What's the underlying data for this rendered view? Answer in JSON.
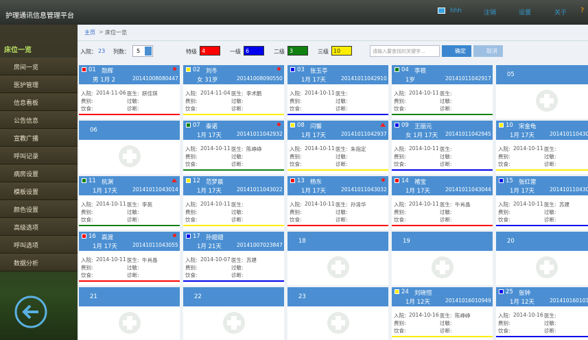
{
  "header": {
    "title": "护理通讯信息管理平台",
    "user": "hhh",
    "links": [
      "注销",
      "设置",
      "关于",
      "?"
    ]
  },
  "sidebar": {
    "heading": "床位一览",
    "items": [
      "房间一览",
      "医护管理",
      "信息看板",
      "公告信息",
      "宣教广播",
      "呼叫记录",
      "病房设置",
      "模板设置",
      "颜色设置",
      "高级选项",
      "呼叫选项",
      "数据分析"
    ]
  },
  "breadcrumb": {
    "items": [
      "主页",
      "床位一览"
    ],
    "separator": ">"
  },
  "toolbar": {
    "admitted_label": "入院：",
    "admitted": 23,
    "columns_label": "列数：",
    "columns": 5,
    "levels": [
      {
        "name": "特级",
        "count": 4,
        "color": "#ff0000"
      },
      {
        "name": "一级",
        "count": 6,
        "color": "#0000ee"
      },
      {
        "name": "二级",
        "count": 3,
        "color": "#108010"
      },
      {
        "name": "三级",
        "count": 10,
        "color": "#ffee00"
      }
    ],
    "search_placeholder": "请输入要查找的关键字...",
    "confirm": "确定",
    "cancel": "取消"
  },
  "field_labels": {
    "admit": "入院:",
    "doctor": "医生:",
    "fee": "费别:",
    "allergy": "过敏:",
    "diet": "饮食:",
    "diagnosis": "诊断:"
  },
  "beds": [
    {
      "number": "01",
      "name": "勋辉",
      "age": "男 1月 2",
      "id": "20141008080447",
      "admit_date": "2014-11-06",
      "doctor": "趼佳琪",
      "color": "#ff0000",
      "flag": "dot"
    },
    {
      "number": "02",
      "name": "刘冬",
      "age": "女 31岁",
      "id": "20141008090550",
      "admit_date": "2014-11-04",
      "doctor": "李术鹏",
      "color": "#ffee00",
      "flag": "dot"
    },
    {
      "number": "03",
      "name": "张玉亭",
      "age": "1月 17天",
      "id": "20141011042910",
      "admit_date": "2014-10-11",
      "color": "#0000ee"
    },
    {
      "number": "04",
      "name": "李根",
      "age": "1岁",
      "id": "20141011042917",
      "admit_date": "2014-10-11",
      "color": "#108010"
    },
    {
      "number": "05"
    },
    {
      "number": "06"
    },
    {
      "number": "07",
      "name": "秦诺",
      "age": "1月 17天",
      "id": "20141011042932",
      "admit_date": "2014-10-11",
      "doctor": "陈峥峥",
      "color": "#108010",
      "flag": "dot"
    },
    {
      "number": "08",
      "name": "闫馨",
      "age": "1月 17天",
      "id": "20141011042937",
      "admit_date": "2014-10-11",
      "doctor": "朱指定",
      "color": "#ffee00",
      "flag": "triangle"
    },
    {
      "number": "09",
      "name": "王丽元",
      "age": "女 1月 17天",
      "id": "20141011042945",
      "admit_date": "2014-10-11",
      "color": "#0000ee"
    },
    {
      "number": "10",
      "name": "宋金龟",
      "age": "1月 17天",
      "id": "2014101104303",
      "admit_date": "2014-10-11",
      "color": "#ffee00"
    },
    {
      "number": "11",
      "name": "杭渊",
      "age": "1月 17天",
      "id": "20141011043014",
      "admit_date": "2014-10-11",
      "doctor": "李苑",
      "color": "#108010",
      "flag": "triangle"
    },
    {
      "number": "12",
      "name": "范梦晨",
      "age": "1月 17天",
      "id": "20141011043022",
      "admit_date": "2014-10-11",
      "color": "#ffee00"
    },
    {
      "number": "13",
      "name": "杨东",
      "age": "1月 17天",
      "id": "20141011043032",
      "admit_date": "2014-10-11",
      "doctor": "孙清华",
      "color": "#ff0000",
      "flag": "dot"
    },
    {
      "number": "14",
      "name": "褚宝",
      "age": "1月 17天",
      "id": "20141011043044",
      "admit_date": "2014-10-11",
      "doctor": "牛肖晶",
      "color": "#ff0000"
    },
    {
      "number": "15",
      "name": "张红雷",
      "age": "1月 17天",
      "id": "2014101104303",
      "admit_date": "2014-10-11",
      "doctor": "苏建",
      "color": "#0000ee"
    },
    {
      "number": "16",
      "name": "高渡",
      "age": "1月 17天",
      "id": "20141011043055",
      "admit_date": "2014-10-11",
      "doctor": "牛肖晶",
      "color": "#ff0000",
      "flag": "dot"
    },
    {
      "number": "17",
      "name": "孙翅翅",
      "age": "1月 21天",
      "id": "20141007023847",
      "admit_date": "2014-10-07",
      "doctor": "苏建",
      "color": "#0000ee"
    },
    {
      "number": "18"
    },
    {
      "number": "19"
    },
    {
      "number": "20"
    },
    {
      "number": "21"
    },
    {
      "number": "22"
    },
    {
      "number": "23"
    },
    {
      "number": "24",
      "name": "刘晓恒",
      "age": "1月 12天",
      "id": "20141016010949",
      "admit_date": "2014-10-16",
      "doctor": "陈峥峥",
      "color": "#ffee00"
    },
    {
      "number": "25",
      "name": "张钟",
      "age": "1月 12天",
      "id": "2014101601010",
      "admit_date": "2014-10-16",
      "color": "#0000ee"
    }
  ]
}
